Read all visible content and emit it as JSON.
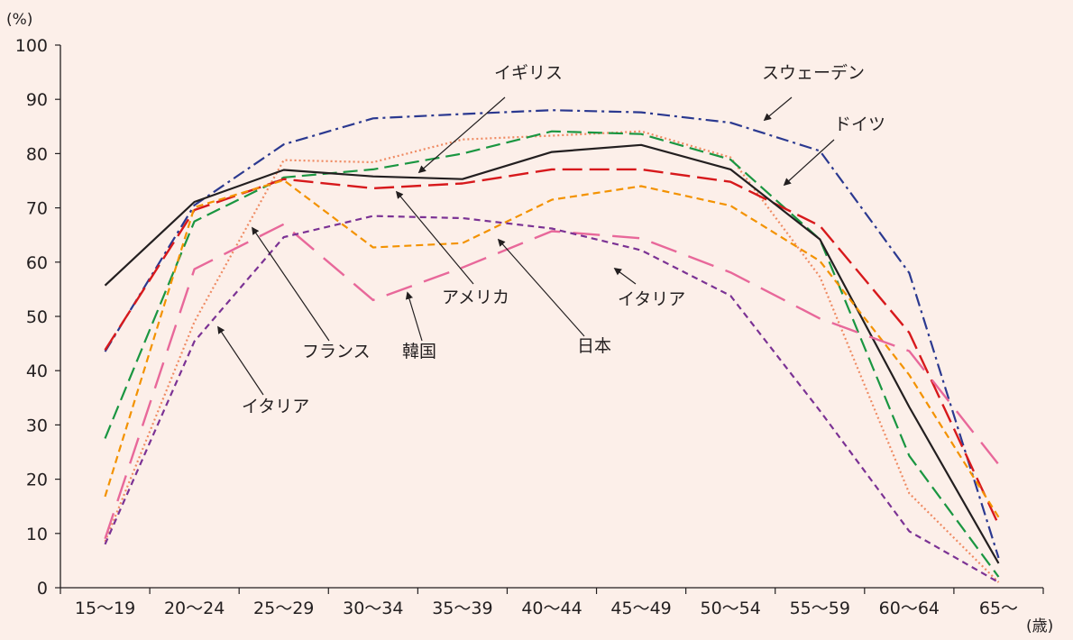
{
  "chart_data": {
    "type": "line",
    "y_unit": "(%)",
    "x_unit": "(歳)",
    "ylim": [
      0,
      100
    ],
    "y_ticks": [
      0,
      10,
      20,
      30,
      40,
      50,
      60,
      70,
      80,
      90,
      100
    ],
    "categories": [
      "15～19",
      "20～24",
      "25～29",
      "30～34",
      "35～39",
      "40～44",
      "45～49",
      "50～54",
      "55～59",
      "60～64",
      "65～"
    ],
    "grid": false,
    "series": [
      {
        "key": "sweden",
        "color": "#2b3990",
        "dash": "14 5 3 5",
        "width": 2.2,
        "values": [
          43.5,
          70.5,
          81.7,
          86.5,
          87.3,
          88.0,
          87.6,
          85.7,
          80.5,
          58.0,
          5.5
        ]
      },
      {
        "key": "uk",
        "color": "#ef8a62",
        "dash": "2 3",
        "width": 2.2,
        "values": [
          8.5,
          49.0,
          78.8,
          78.4,
          82.6,
          83.3,
          84.1,
          79.3,
          57.3,
          17.4,
          1.0
        ]
      },
      {
        "key": "germany",
        "color": "#1a9641",
        "dash": "16 7",
        "width": 2.2,
        "values": [
          27.5,
          67.5,
          75.6,
          77.1,
          80.0,
          84.1,
          83.6,
          78.9,
          64.2,
          24.3,
          2.0
        ]
      },
      {
        "key": "usa",
        "color": "#d7191c",
        "dash": "22 8",
        "width": 2.4,
        "values": [
          43.8,
          69.6,
          75.3,
          73.6,
          74.5,
          77.1,
          77.1,
          74.8,
          66.7,
          47.0,
          11.6
        ]
      },
      {
        "key": "japan",
        "color": "#231f20",
        "dash": "",
        "width": 2.2,
        "values": [
          55.7,
          71.1,
          77.0,
          75.8,
          75.3,
          80.3,
          81.6,
          77.1,
          64.2,
          33.3,
          4.5
        ]
      },
      {
        "key": "france",
        "color": "#f39200",
        "dash": "8 5",
        "width": 2.2,
        "values": [
          16.8,
          70.1,
          75.1,
          62.7,
          63.5,
          71.5,
          74.0,
          70.4,
          60.2,
          39.2,
          13.0
        ]
      },
      {
        "key": "korea",
        "color": "#e8689a",
        "dash": "30 14",
        "width": 2.4,
        "values": [
          9.0,
          58.7,
          67.0,
          53.0,
          59.0,
          65.7,
          64.4,
          58.1,
          49.6,
          43.6,
          22.7
        ]
      },
      {
        "key": "italy",
        "color": "#7b3294",
        "dash": "7 5",
        "width": 2.2,
        "values": [
          8.0,
          45.4,
          64.6,
          68.5,
          68.1,
          66.2,
          62.2,
          53.8,
          32.6,
          10.4,
          1.0
        ]
      }
    ],
    "annotations": [
      {
        "text": "イギリス"
      },
      {
        "text": "スウェーデン"
      },
      {
        "text": "ドイツ"
      },
      {
        "text": "アメリカ"
      },
      {
        "text": "イタリア"
      },
      {
        "text": "日本"
      },
      {
        "text": "フランス"
      },
      {
        "text": "韓国"
      },
      {
        "text": "イタリア"
      }
    ]
  }
}
